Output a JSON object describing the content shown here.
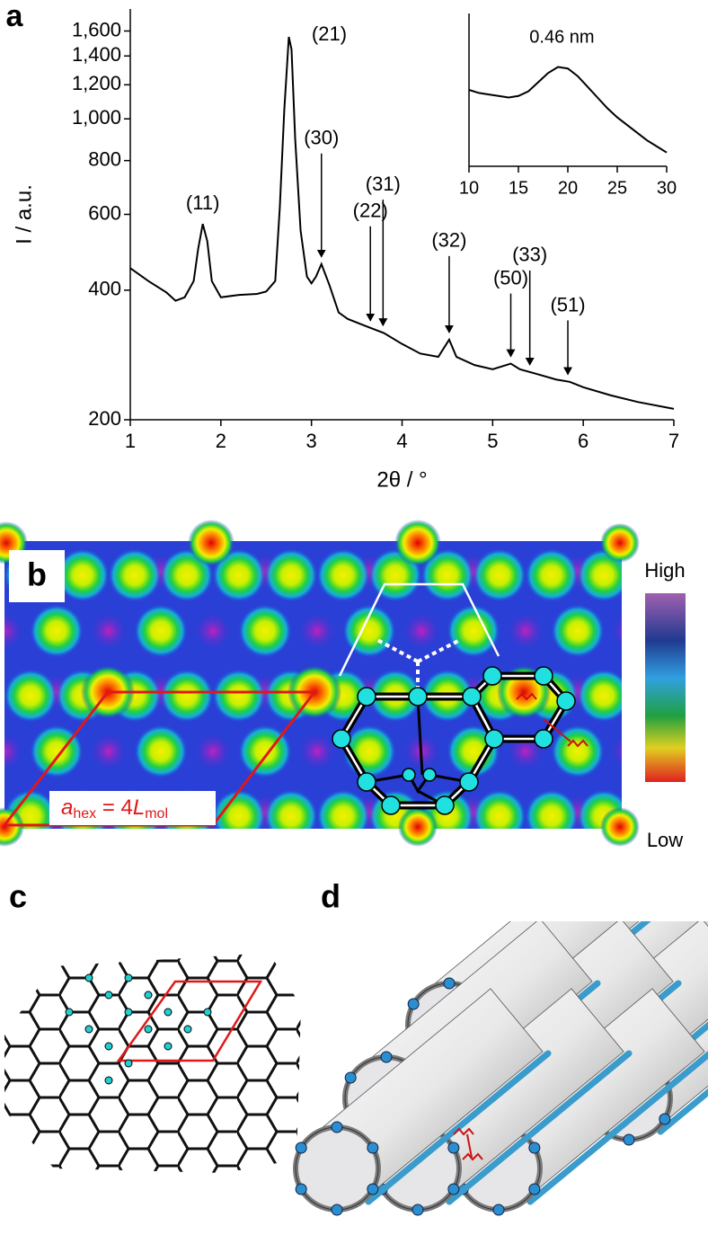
{
  "chart_data": [
    {
      "type": "line",
      "panel_label": "a",
      "xlabel": "2θ / °",
      "ylabel": "I / a.u.",
      "yscale": "log",
      "color": "#000000",
      "xlim": [
        1,
        7
      ],
      "xticks": [
        1,
        2,
        3,
        4,
        5,
        6,
        7
      ],
      "ylim": [
        200,
        1800
      ],
      "yticks": [
        200,
        400,
        600,
        800,
        {
          "value": 1000,
          "label": "1,000"
        },
        {
          "value": 1200,
          "label": "1,200"
        },
        {
          "value": 1400,
          "label": "1,400"
        },
        {
          "value": 1600,
          "label": "1,600"
        }
      ],
      "x": [
        1.0,
        1.2,
        1.4,
        1.5,
        1.6,
        1.7,
        1.75,
        1.8,
        1.85,
        1.9,
        2.0,
        2.2,
        2.4,
        2.5,
        2.6,
        2.65,
        2.7,
        2.75,
        2.78,
        2.82,
        2.88,
        2.95,
        3.0,
        3.05,
        3.11,
        3.2,
        3.3,
        3.4,
        3.6,
        3.8,
        4.0,
        4.2,
        4.4,
        4.52,
        4.6,
        4.8,
        5.0,
        5.2,
        5.3,
        5.5,
        5.7,
        5.85,
        6.0,
        6.3,
        6.6,
        7.0
      ],
      "values": [
        450,
        420,
        395,
        378,
        385,
        420,
        500,
        570,
        520,
        420,
        385,
        390,
        392,
        397,
        420,
        620,
        1050,
        1550,
        1450,
        900,
        550,
        430,
        415,
        430,
        460,
        410,
        355,
        343,
        330,
        318,
        300,
        285,
        280,
        307,
        280,
        268,
        262,
        270,
        262,
        255,
        248,
        245,
        238,
        228,
        220,
        212
      ],
      "annotations": [
        {
          "text": "(11)",
          "x": 1.8
        },
        {
          "text": "(21)",
          "x": 2.75
        },
        {
          "text": "(30)",
          "x": 3.11,
          "arrow": true
        },
        {
          "text": "(22)",
          "x": 3.65,
          "arrow": true
        },
        {
          "text": "(31)",
          "x": 3.79,
          "arrow": true
        },
        {
          "text": "(32)",
          "x": 4.52,
          "arrow": true
        },
        {
          "text": "(50)",
          "x": 5.2,
          "arrow": true
        },
        {
          "text": "(33)",
          "x": 5.41,
          "arrow": true
        },
        {
          "text": "(51)",
          "x": 5.83,
          "arrow": true
        }
      ]
    },
    {
      "type": "line",
      "annotation": "0.46 nm",
      "color": "#000000",
      "xlim": [
        10,
        30
      ],
      "xticks": [
        10,
        15,
        20,
        25,
        30
      ],
      "ylim": [
        0,
        100
      ],
      "x": [
        10,
        11,
        12,
        13,
        14,
        15,
        16,
        17,
        18,
        19,
        20,
        21,
        22,
        23,
        24,
        25,
        26,
        27,
        28,
        29,
        30
      ],
      "values": [
        50,
        48,
        47,
        46,
        45,
        46,
        49,
        55,
        61,
        65,
        64,
        59,
        52,
        45,
        38,
        32,
        27,
        22,
        17,
        13,
        9
      ]
    }
  ],
  "panels": {
    "b": {
      "label": "b",
      "high": "High",
      "low": "Low",
      "lattice": {
        "a": "a",
        "a_sub": "hex",
        "eq": " = 4",
        "L": "L",
        "L_sub": "mol"
      }
    },
    "c": {
      "label": "c"
    },
    "d": {
      "label": "d"
    }
  }
}
